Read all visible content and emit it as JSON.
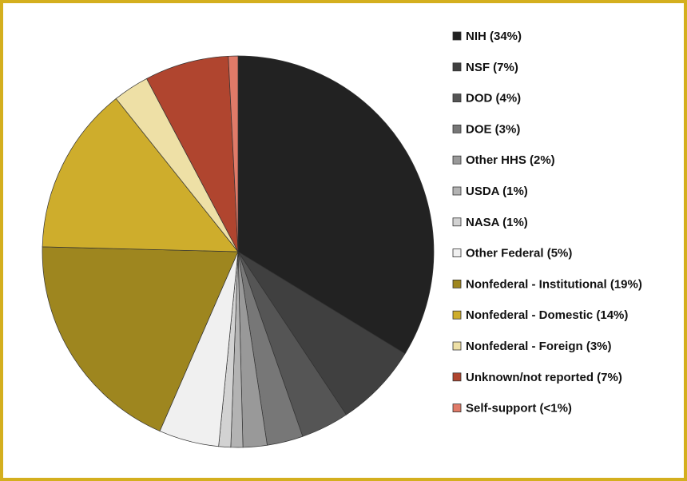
{
  "chart_data": {
    "type": "pie",
    "categories": [
      "NIH (34%)",
      "NSF (7%)",
      "DOD (4%)",
      "DOE (3%)",
      "Other HHS (2%)",
      "USDA (1%)",
      "NASA (1%)",
      "Other Federal (5%)",
      "Nonfederal - Institutional (19%)",
      "Nonfederal - Domestic (14%)",
      "Nonfederal - Foreign (3%)",
      "Unknown/not reported (7%)",
      "Self-support (<1%)"
    ],
    "values": [
      34,
      7,
      4,
      3,
      2,
      1,
      1,
      5,
      19,
      14,
      3,
      7,
      0.8
    ],
    "colors": [
      "#222222",
      "#404040",
      "#555555",
      "#777777",
      "#999999",
      "#b3b3b3",
      "#d2d2d2",
      "#f0f0f0",
      "#9e861f",
      "#cead2c",
      "#eee0a6",
      "#b0452f",
      "#e07a68"
    ],
    "legend": "right"
  }
}
